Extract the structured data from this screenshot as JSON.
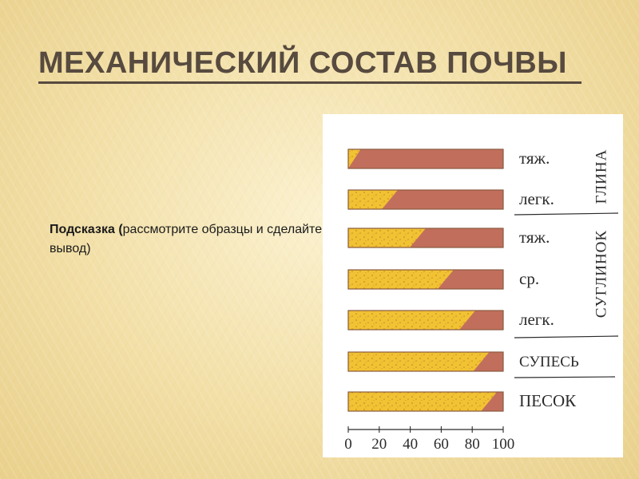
{
  "title": "МЕХАНИЧЕСКИЙ СОСТАВ ПОЧВЫ",
  "hint": {
    "lead": "Подсказка",
    "open_paren": " (",
    "body": "рассмотрите образцы и сделайте вывод)"
  },
  "figure": {
    "rows": [
      {
        "label": "тяж.",
        "sand_share": 8
      },
      {
        "label": "легк.",
        "sand_share": 32
      },
      {
        "label": "тяж.",
        "sand_share": 50
      },
      {
        "label": "ср.",
        "sand_share": 68
      },
      {
        "label": "легк.",
        "sand_share": 82
      },
      {
        "label": "СУПЕСЬ",
        "sand_share": 91
      },
      {
        "label": "ПЕСОК",
        "sand_share": 96
      }
    ],
    "groups": [
      {
        "label": "ГЛИНА"
      },
      {
        "label": "СУГЛИНОК"
      }
    ],
    "axis_ticks": [
      "0",
      "20",
      "40",
      "60",
      "80",
      "100"
    ],
    "colors": {
      "sand": "#f1c232",
      "clay": "#c26e5c",
      "speckle": "#c9892f",
      "ink": "#2b2b2b"
    }
  }
}
